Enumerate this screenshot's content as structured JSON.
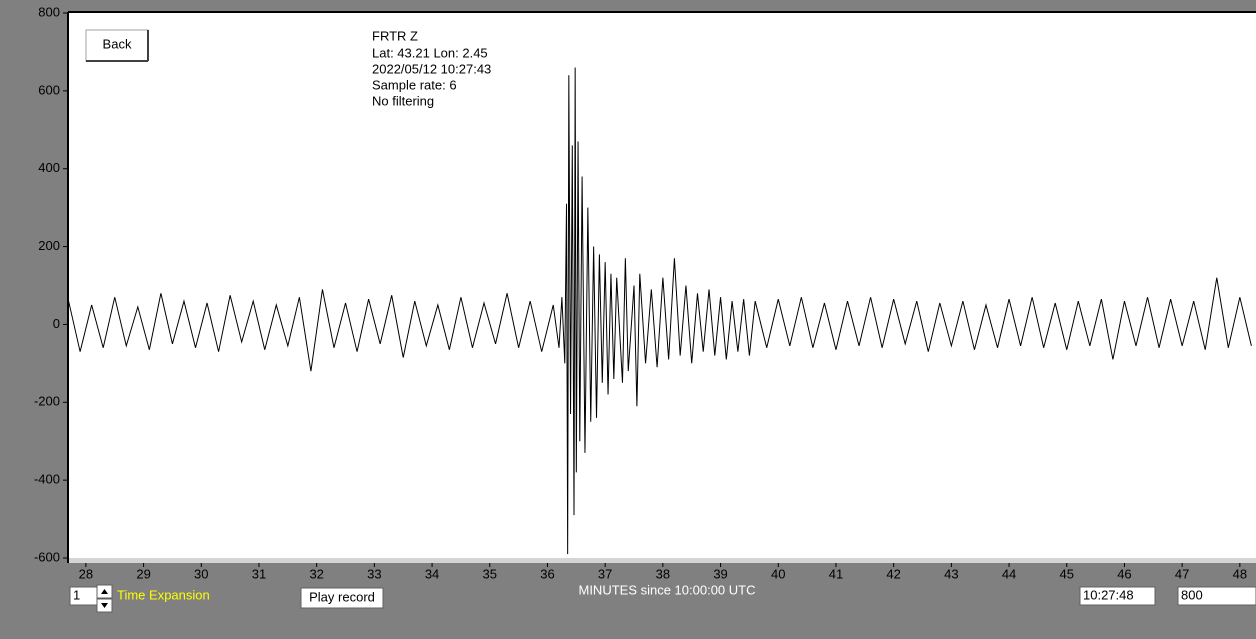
{
  "chart_data": {
    "type": "line",
    "xlabel": "MINUTES since 10:00:00 UTC",
    "color": "#000000",
    "xlim": [
      27.69,
      48.28
    ],
    "ylim": [
      -600,
      800
    ],
    "xticks": [
      28,
      29,
      30,
      31,
      32,
      33,
      34,
      35,
      36,
      37,
      38,
      39,
      40,
      41,
      42,
      43,
      44,
      45,
      46,
      47,
      48
    ],
    "yticks": [
      800,
      600,
      400,
      200,
      0,
      -200,
      -400,
      -600
    ],
    "x": [
      27.7,
      27.9,
      28.1,
      28.3,
      28.5,
      28.7,
      28.9,
      29.1,
      29.3,
      29.5,
      29.7,
      29.9,
      30.1,
      30.3,
      30.5,
      30.7,
      30.9,
      31.1,
      31.3,
      31.5,
      31.7,
      31.9,
      32.1,
      32.3,
      32.5,
      32.7,
      32.9,
      33.1,
      33.3,
      33.5,
      33.7,
      33.9,
      34.1,
      34.3,
      34.5,
      34.7,
      34.9,
      35.1,
      35.3,
      35.5,
      35.7,
      35.9,
      36.1,
      36.2,
      36.25,
      36.3,
      36.33,
      36.35,
      36.37,
      36.4,
      36.43,
      36.46,
      36.48,
      36.5,
      36.53,
      36.56,
      36.6,
      36.65,
      36.7,
      36.75,
      36.8,
      36.85,
      36.9,
      36.95,
      37.0,
      37.05,
      37.1,
      37.15,
      37.2,
      37.3,
      37.35,
      37.4,
      37.5,
      37.55,
      37.6,
      37.7,
      37.8,
      37.9,
      38.0,
      38.1,
      38.2,
      38.3,
      38.4,
      38.5,
      38.6,
      38.7,
      38.8,
      38.9,
      39.0,
      39.1,
      39.2,
      39.3,
      39.4,
      39.5,
      39.6,
      39.8,
      40.0,
      40.2,
      40.4,
      40.6,
      40.8,
      41.0,
      41.2,
      41.4,
      41.6,
      41.8,
      42.0,
      42.2,
      42.4,
      42.6,
      42.8,
      43.0,
      43.2,
      43.4,
      43.6,
      43.8,
      44.0,
      44.2,
      44.4,
      44.6,
      44.8,
      45.0,
      45.2,
      45.4,
      45.6,
      45.8,
      46.0,
      46.2,
      46.4,
      46.6,
      46.8,
      47.0,
      47.2,
      47.4,
      47.6,
      47.8,
      48.0,
      48.2
    ],
    "values": [
      60,
      -70,
      50,
      -60,
      70,
      -55,
      45,
      -65,
      80,
      -50,
      60,
      -60,
      55,
      -70,
      75,
      -45,
      60,
      -65,
      50,
      -55,
      70,
      -120,
      90,
      -60,
      55,
      -70,
      65,
      -50,
      75,
      -85,
      60,
      -55,
      50,
      -65,
      70,
      -60,
      55,
      -50,
      80,
      -60,
      60,
      -70,
      50,
      -60,
      70,
      -100,
      310,
      -590,
      640,
      -230,
      460,
      -490,
      660,
      -380,
      470,
      -300,
      380,
      -330,
      300,
      -250,
      200,
      -240,
      180,
      -150,
      160,
      -180,
      130,
      -140,
      120,
      -150,
      170,
      -120,
      100,
      -210,
      130,
      -100,
      90,
      -110,
      120,
      -90,
      170,
      -80,
      100,
      -100,
      80,
      -70,
      90,
      -80,
      70,
      -90,
      60,
      -70,
      65,
      -80,
      60,
      -60,
      65,
      -55,
      70,
      -60,
      55,
      -65,
      60,
      -55,
      70,
      -60,
      65,
      -50,
      60,
      -70,
      55,
      -55,
      60,
      -65,
      50,
      -60,
      65,
      -55,
      70,
      -60,
      55,
      -65,
      60,
      -55,
      65,
      -90,
      60,
      -55,
      70,
      -60,
      65,
      -55,
      60,
      -65,
      120,
      -60,
      70,
      -55
    ]
  },
  "ui": {
    "back_button": "Back",
    "info": [
      "FRTR  Z",
      "Lat: 43.21 Lon: 2.45",
      "2022/05/12 10:27:43",
      "Sample rate: 6",
      "No filtering"
    ],
    "time_expansion_value": "1",
    "time_expansion_label": "Time Expansion",
    "play_button": "Play record",
    "time_field": "10:27:48",
    "amplitude_field": "800"
  }
}
